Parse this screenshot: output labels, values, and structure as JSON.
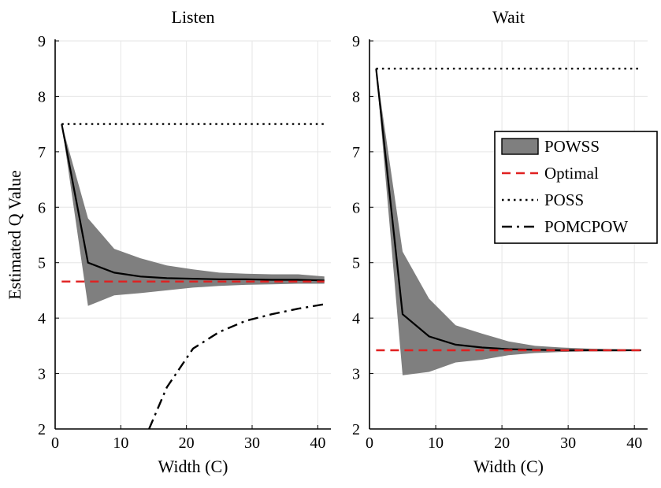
{
  "chart_data": [
    {
      "type": "line",
      "title": "Listen",
      "xlabel": "Width (C)",
      "ylabel": "Estimated Q Value",
      "xlim": [
        0,
        42
      ],
      "ylim": [
        2,
        9
      ],
      "xticks": [
        "0",
        "10",
        "20",
        "30",
        "40"
      ],
      "yticks": [
        "2",
        "3",
        "4",
        "5",
        "6",
        "7",
        "8",
        "9"
      ],
      "grid": true,
      "series": [
        {
          "name": "POWSS",
          "style": "solid",
          "color": "#000000",
          "x": [
            1,
            5,
            9,
            13,
            17,
            21,
            25,
            29,
            33,
            37,
            41
          ],
          "y": [
            7.5,
            5.0,
            4.82,
            4.75,
            4.72,
            4.71,
            4.7,
            4.7,
            4.69,
            4.69,
            4.68
          ],
          "band_upper": [
            7.5,
            5.8,
            5.25,
            5.08,
            4.95,
            4.88,
            4.82,
            4.8,
            4.79,
            4.79,
            4.75
          ],
          "band_lower": [
            7.5,
            4.22,
            4.41,
            4.45,
            4.5,
            4.55,
            4.58,
            4.6,
            4.61,
            4.62,
            4.62
          ]
        },
        {
          "name": "Optimal",
          "style": "dashed",
          "color": "#e02020",
          "x": [
            1,
            41
          ],
          "y": [
            4.66,
            4.66
          ]
        },
        {
          "name": "POSS",
          "style": "dotted",
          "color": "#000000",
          "x": [
            1,
            41
          ],
          "y": [
            7.5,
            7.5
          ]
        },
        {
          "name": "POMCPOW",
          "style": "dashdot",
          "color": "#000000",
          "x": [
            14.3,
            17,
            21,
            25,
            29,
            33,
            37,
            41
          ],
          "y": [
            2.0,
            2.75,
            3.45,
            3.75,
            3.95,
            4.07,
            4.17,
            4.25
          ]
        }
      ]
    },
    {
      "type": "line",
      "title": "Wait",
      "xlabel": "Width (C)",
      "ylabel": "",
      "xlim": [
        0,
        42
      ],
      "ylim": [
        2,
        9
      ],
      "xticks": [
        "0",
        "10",
        "20",
        "30",
        "40"
      ],
      "yticks": [
        "2",
        "3",
        "4",
        "5",
        "6",
        "7",
        "8",
        "9"
      ],
      "grid": true,
      "legend": {
        "position": "right-upper",
        "entries": [
          {
            "label": "POWSS",
            "style": "band"
          },
          {
            "label": "Optimal",
            "style": "dashed",
            "color": "#e02020"
          },
          {
            "label": "POSS",
            "style": "dotted",
            "color": "#000000"
          },
          {
            "label": "POMCPOW",
            "style": "dashdot",
            "color": "#000000"
          }
        ]
      },
      "series": [
        {
          "name": "POWSS",
          "style": "solid",
          "color": "#000000",
          "x": [
            1,
            5,
            9,
            13,
            17,
            21,
            25,
            29,
            33,
            37,
            41
          ],
          "y": [
            8.5,
            4.07,
            3.67,
            3.52,
            3.47,
            3.44,
            3.43,
            3.42,
            3.42,
            3.42,
            3.42
          ],
          "band_upper": [
            8.5,
            5.2,
            4.35,
            3.87,
            3.72,
            3.58,
            3.5,
            3.47,
            3.45,
            3.44,
            3.43
          ],
          "band_lower": [
            8.5,
            2.97,
            3.03,
            3.2,
            3.25,
            3.33,
            3.37,
            3.39,
            3.4,
            3.4,
            3.41
          ]
        },
        {
          "name": "Optimal",
          "style": "dashed",
          "color": "#e02020",
          "x": [
            1,
            41
          ],
          "y": [
            3.42,
            3.42
          ]
        },
        {
          "name": "POSS",
          "style": "dotted",
          "color": "#000000",
          "x": [
            1,
            41
          ],
          "y": [
            8.5,
            8.5
          ]
        }
      ]
    }
  ]
}
